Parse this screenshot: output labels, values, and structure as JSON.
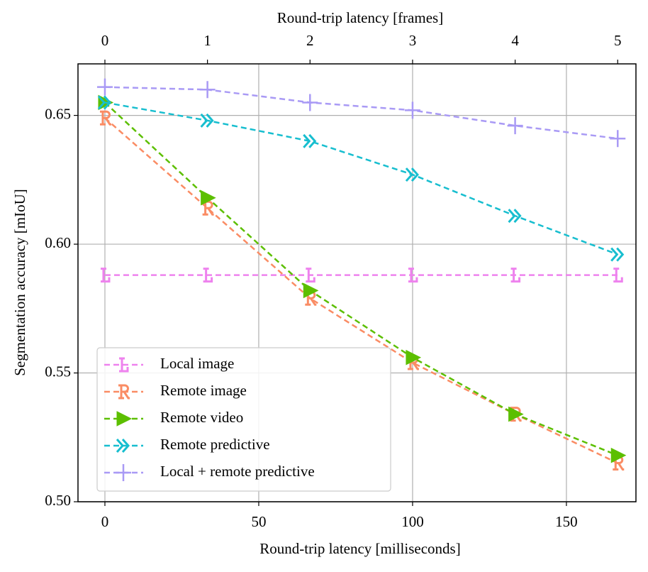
{
  "chart_data": {
    "type": "line",
    "xlabel": "Round-trip latency [milliseconds]",
    "x2label": "Round-trip latency [frames]",
    "ylabel": "Segmentation accuracy [mIoU]",
    "x": [
      0,
      33.33,
      66.67,
      100,
      133.33,
      166.67
    ],
    "xlim": [
      -8.75,
      172.6
    ],
    "xticks": [
      0,
      50,
      100,
      150
    ],
    "x2lim": [
      -0.2625,
      5.178
    ],
    "x2ticks": [
      0,
      1,
      2,
      3,
      4,
      5
    ],
    "ylim": [
      0.5,
      0.67
    ],
    "yticks": [
      {
        "value": 0.5,
        "label": "0.50"
      },
      0.55,
      {
        "value": 0.6,
        "label": "0.60"
      },
      0.65
    ],
    "grid": true,
    "legend": "lower left",
    "series": [
      {
        "name": "Local image",
        "color": "#ee82ee",
        "marker": "L",
        "values": [
          0.588,
          0.588,
          0.588,
          0.588,
          0.588,
          0.588
        ]
      },
      {
        "name": "Remote image",
        "color": "#fa8c64",
        "marker": "R",
        "values": [
          0.649,
          0.614,
          0.579,
          0.554,
          0.534,
          0.515
        ]
      },
      {
        "name": "Remote video",
        "color": "#5cbf00",
        "marker": "triangle-right",
        "values": [
          0.655,
          0.618,
          0.582,
          0.556,
          0.534,
          0.518
        ]
      },
      {
        "name": "Remote predictive",
        "color": "#17becf",
        "marker": "double-chevron",
        "values": [
          0.655,
          0.648,
          0.64,
          0.627,
          0.611,
          0.596
        ]
      },
      {
        "name": "Local + remote predictive",
        "color": "#a99af5",
        "marker": "plus",
        "values": [
          0.661,
          0.66,
          0.655,
          0.652,
          0.646,
          0.641
        ]
      }
    ]
  }
}
